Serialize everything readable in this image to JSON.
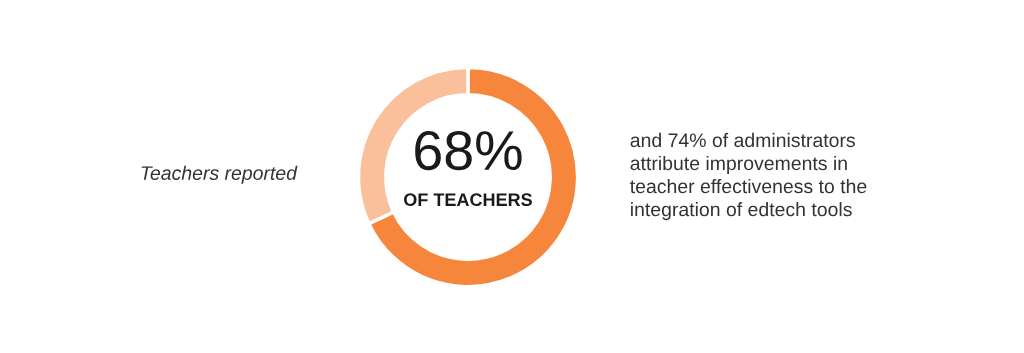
{
  "chart_data": {
    "type": "donut",
    "categories": [
      null,
      null
    ],
    "values": [
      68,
      32
    ],
    "colors": [
      "#f6863c",
      "#f9c09b"
    ],
    "annotations": [
      "Teachers reported",
      "68%",
      "OF TEACHERS",
      "and 74% of administrators\nattribute improvements in\nteacher effectiveness to the\nintegration of edtech tools"
    ]
  }
}
